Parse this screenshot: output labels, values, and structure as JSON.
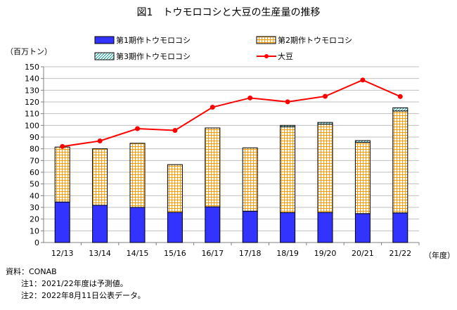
{
  "chart_data": {
    "type": "bar",
    "title": "図1　トウモロコシと大豆の生産量の推移",
    "ylabel": "（百万トン）",
    "xlabel": "（年度）",
    "ylim": [
      0,
      150
    ],
    "yticks": [
      0,
      10,
      20,
      30,
      40,
      50,
      60,
      70,
      80,
      90,
      100,
      110,
      120,
      130,
      140,
      150
    ],
    "grid": true,
    "legend": "top",
    "categories": [
      "12/13",
      "13/14",
      "14/15",
      "15/16",
      "16/17",
      "17/18",
      "18/19",
      "19/20",
      "20/21",
      "21/22"
    ],
    "series": [
      {
        "name": "第1期作トウモロコシ",
        "kind": "stacked-bar",
        "color": "#3333ff",
        "values": [
          34.6,
          31.8,
          30.0,
          25.8,
          30.5,
          26.8,
          25.6,
          25.7,
          24.7,
          25.3
        ]
      },
      {
        "name": "第2期作トウモロコシ",
        "kind": "stacked-bar",
        "color": "#ff9900",
        "values": [
          46.9,
          48.2,
          54.7,
          40.7,
          67.3,
          54.0,
          73.2,
          75.3,
          60.8,
          87.0
        ]
      },
      {
        "name": "第3期作トウモロコシ",
        "kind": "stacked-bar",
        "color": "#009999",
        "values": [
          0,
          0,
          0,
          0,
          0,
          0,
          1.2,
          1.5,
          1.5,
          2.7
        ]
      },
      {
        "name": "大豆",
        "kind": "line",
        "color": "#ff0000",
        "values": [
          82.0,
          86.7,
          97.2,
          95.7,
          115.5,
          123.4,
          120.1,
          124.8,
          138.7,
          124.6
        ]
      }
    ]
  },
  "notes": [
    "資料：CONAB",
    "注1：2021/22年度は予測値。",
    "注2：2022年8月11日公表データ。"
  ]
}
